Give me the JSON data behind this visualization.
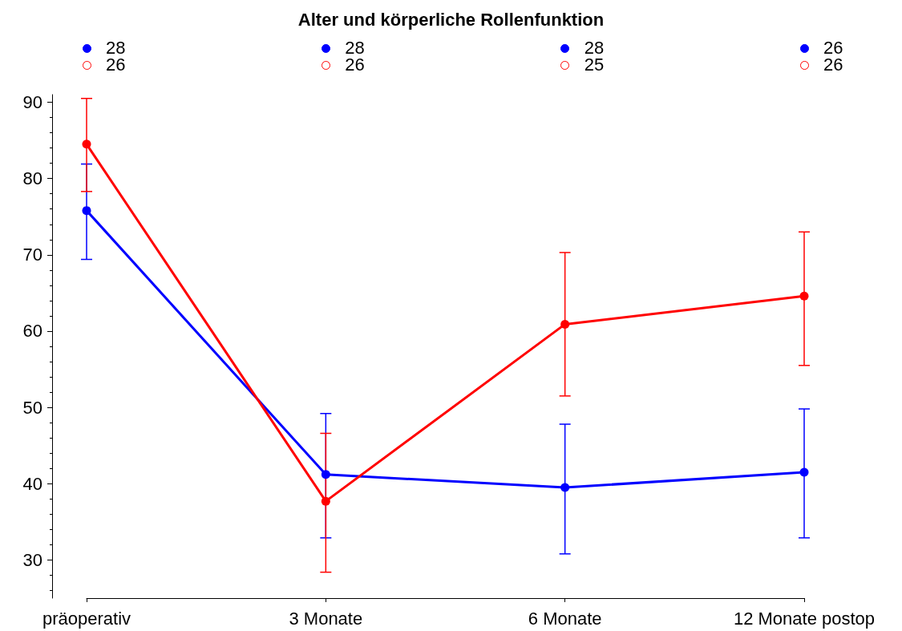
{
  "chart_data": {
    "type": "line",
    "title": "Alter und körperliche Rollenfunktion",
    "categories": [
      "präoperativ",
      "3 Monate",
      "6 Monate",
      "12 Monate postop"
    ],
    "series": [
      {
        "color": "#0000ff",
        "marker": "circle",
        "values": [
          75.8,
          41.2,
          39.5,
          41.5
        ],
        "errors": [
          [
            69.4,
            81.9
          ],
          [
            32.9,
            49.2
          ],
          [
            30.8,
            47.8
          ],
          [
            32.9,
            49.8
          ]
        ]
      },
      {
        "color": "#ff0000",
        "marker": "circle",
        "values": [
          84.5,
          37.7,
          60.9,
          64.6
        ],
        "errors": [
          [
            78.3,
            90.5
          ],
          [
            28.4,
            46.6
          ],
          [
            51.5,
            70.3
          ],
          [
            55.5,
            73.0
          ]
        ]
      }
    ],
    "annotations": [
      "28",
      "28",
      "28",
      "26",
      "26",
      "26",
      "25",
      "26"
    ],
    "ylim": [
      25,
      91
    ],
    "yticks": [
      30,
      40,
      50,
      60,
      70,
      80,
      90
    ],
    "grid": false,
    "line_style": "solid"
  }
}
